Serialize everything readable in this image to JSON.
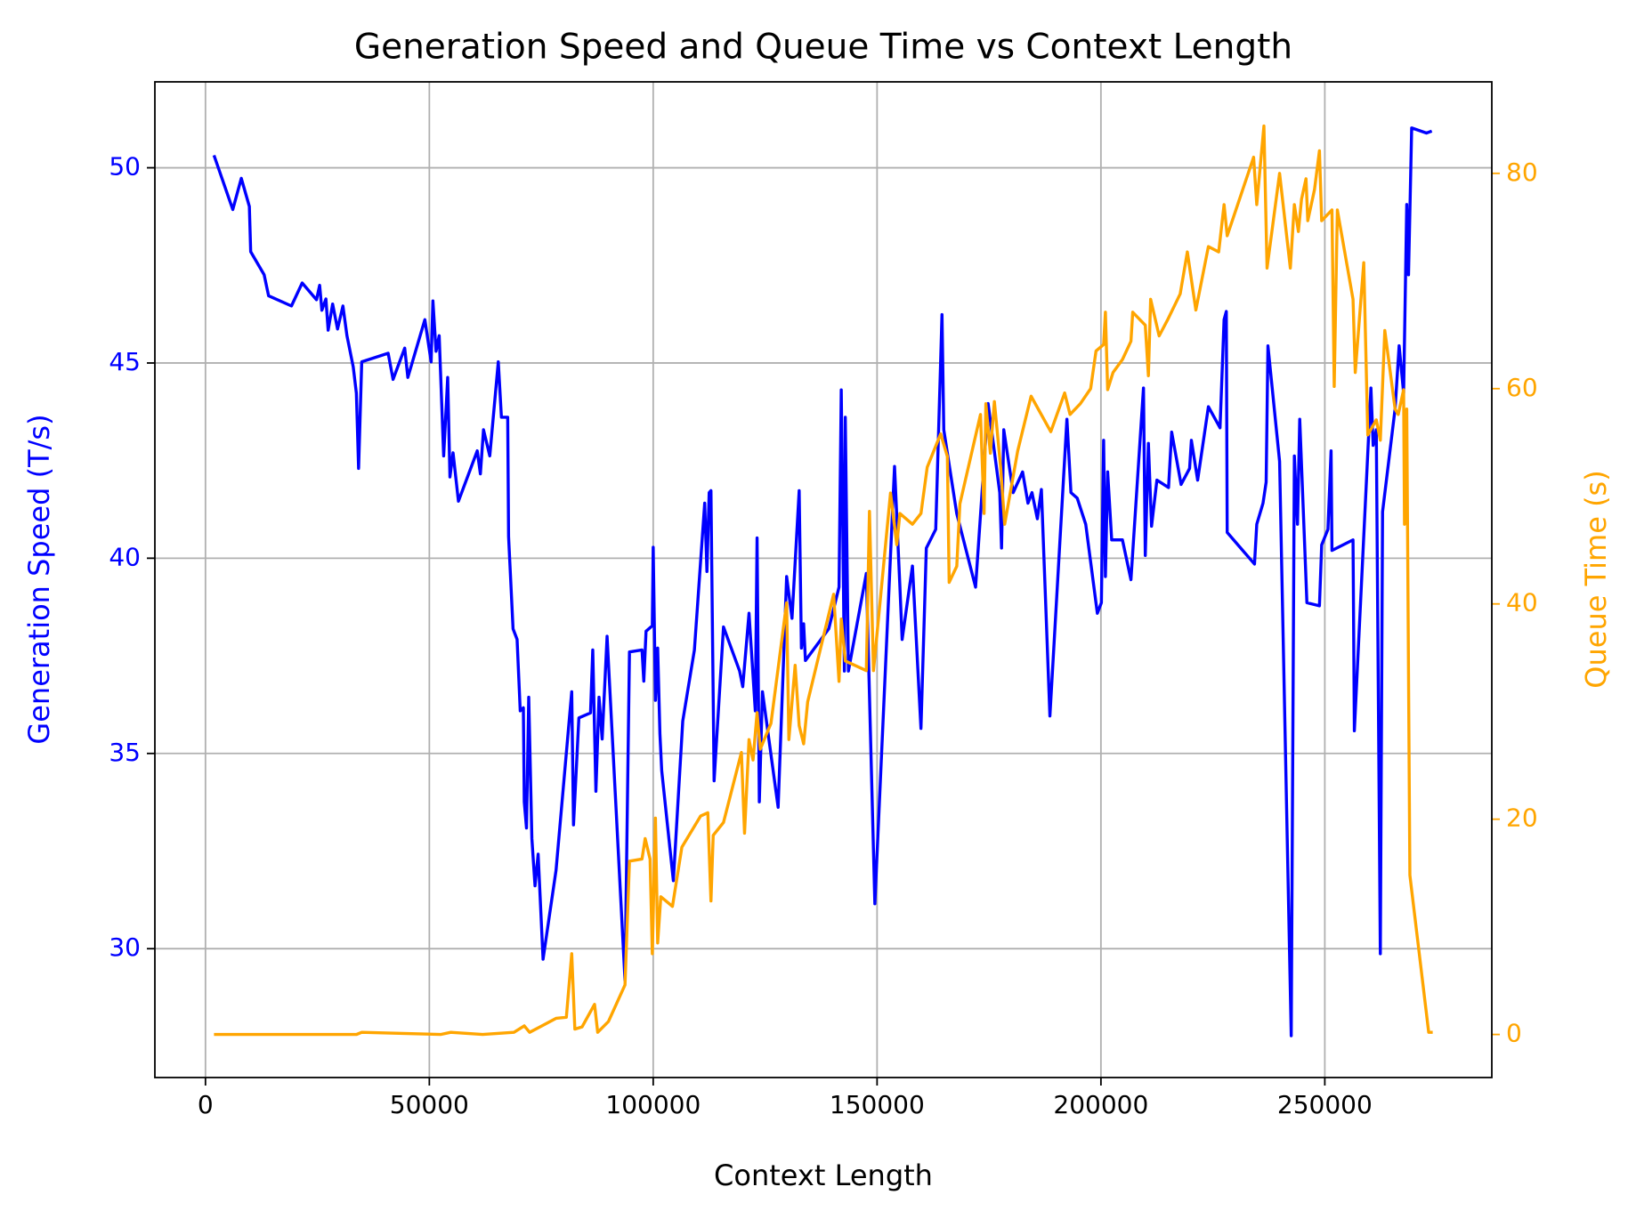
{
  "chart_data": {
    "type": "line",
    "title": "Generation Speed and Queue Time vs Context Length",
    "xlabel": "Context Length",
    "ylabel": "Generation Speed (T/s)",
    "y2label": "Queue Time (s)",
    "xlim": [
      -11300,
      287300
    ],
    "ylim": [
      26.7,
      52.2
    ],
    "y2lim": [
      -4,
      88.5
    ],
    "xticks": [
      0,
      50000,
      100000,
      150000,
      200000,
      250000
    ],
    "yticks": [
      30,
      35,
      40,
      45,
      50
    ],
    "y2ticks": [
      0,
      20,
      40,
      60,
      80
    ],
    "grid": true,
    "series": [
      {
        "color": "#0000ff",
        "axis": "y",
        "x": [
          1900,
          6100,
          8000,
          9800,
          10100,
          13100,
          14100,
          19200,
          21600,
          24800,
          25500,
          26000,
          26900,
          27400,
          28400,
          29500,
          30700,
          31600,
          33000,
          33700,
          34200,
          34900,
          40800,
          41900,
          44500,
          45200,
          49000,
          50400,
          50800,
          51500,
          52200,
          53200,
          54100,
          54600,
          55300,
          56500,
          60700,
          61400,
          62100,
          63500,
          65400,
          66100,
          67500,
          67700,
          68700,
          69600,
          70300,
          71000,
          71200,
          71700,
          72200,
          72900,
          73600,
          74300,
          75400,
          78300,
          81800,
          82200,
          83400,
          86000,
          86500,
          87200,
          87900,
          88600,
          89700,
          93700,
          94700,
          97500,
          97900,
          98400,
          99800,
          100000,
          100500,
          101000,
          101500,
          101900,
          104500,
          106600,
          109200,
          111500,
          112000,
          112500,
          112900,
          113600,
          115700,
          119300,
          120000,
          121400,
          122800,
          123200,
          123700,
          124400,
          127900,
          129800,
          131000,
          132600,
          133100,
          133600,
          134000,
          139200,
          141500,
          142000,
          142700,
          142900,
          143600,
          147600,
          149500,
          153000,
          153900,
          155100,
          155600,
          157900,
          159800,
          161000,
          163100,
          164500,
          164900,
          167800,
          172000,
          174800,
          177400,
          177800,
          178300,
          180400,
          182500,
          183700,
          184600,
          185800,
          186700,
          188600,
          192400,
          193300,
          194700,
          196600,
          199200,
          200100,
          200600,
          201000,
          201500,
          202400,
          204800,
          206700,
          209500,
          209900,
          210600,
          211300,
          212500,
          215100,
          215800,
          217900,
          219800,
          220200,
          221600,
          224000,
          226600,
          227500,
          228000,
          228200,
          234300,
          234800,
          236200,
          236900,
          237300,
          239900,
          242500,
          243200,
          243900,
          244400,
          246000,
          248800,
          249300,
          250700,
          251400,
          251600,
          256300,
          256600,
          260300,
          260800,
          261500,
          262400,
          262900,
          265700,
          266600,
          267600,
          268300,
          268700,
          269400,
          272700,
          273900
        ],
        "values": [
          50.32,
          48.93,
          49.73,
          49.01,
          47.85,
          47.26,
          46.72,
          46.46,
          47.05,
          46.62,
          46.99,
          46.35,
          46.64,
          45.84,
          46.51,
          45.87,
          46.46,
          45.7,
          44.9,
          44.23,
          42.3,
          45.03,
          45.25,
          44.58,
          45.38,
          44.63,
          46.11,
          45.03,
          46.59,
          45.3,
          45.7,
          42.62,
          44.63,
          42.08,
          42.7,
          41.46,
          42.75,
          42.16,
          43.29,
          42.62,
          45.03,
          43.61,
          43.61,
          40.55,
          38.19,
          37.92,
          36.09,
          36.17,
          33.76,
          33.09,
          36.44,
          32.82,
          31.61,
          32.42,
          29.73,
          32.01,
          36.58,
          33.17,
          35.91,
          36.04,
          37.65,
          34.03,
          36.44,
          35.37,
          38.0,
          29.19,
          37.6,
          37.65,
          36.85,
          38.13,
          38.27,
          40.28,
          36.36,
          37.7,
          35.5,
          34.56,
          31.74,
          35.83,
          37.65,
          41.41,
          39.66,
          41.68,
          41.73,
          34.3,
          38.24,
          37.11,
          36.71,
          38.59,
          36.09,
          40.52,
          33.76,
          36.58,
          33.62,
          39.53,
          38.46,
          41.73,
          37.7,
          38.32,
          37.38,
          38.19,
          39.26,
          44.31,
          37.11,
          43.61,
          37.11,
          39.61,
          31.15,
          40.07,
          42.35,
          39.26,
          37.92,
          39.8,
          35.64,
          40.26,
          40.74,
          46.24,
          43.29,
          41.14,
          39.26,
          43.96,
          41.68,
          40.26,
          43.29,
          41.68,
          42.21,
          41.41,
          41.68,
          41.01,
          41.76,
          35.96,
          43.56,
          41.68,
          41.54,
          40.87,
          38.59,
          38.86,
          43.02,
          39.53,
          42.21,
          40.47,
          40.47,
          39.45,
          44.36,
          40.07,
          42.94,
          40.82,
          42.0,
          41.81,
          43.23,
          41.89,
          42.3,
          43.02,
          42.0,
          43.88,
          43.34,
          46.11,
          46.32,
          40.66,
          39.85,
          40.87,
          41.41,
          41.95,
          45.44,
          42.48,
          27.77,
          42.62,
          40.87,
          43.56,
          38.86,
          38.78,
          40.34,
          40.74,
          42.75,
          40.2,
          40.47,
          35.58,
          44.36,
          42.89,
          43.29,
          29.87,
          41.19,
          43.83,
          45.44,
          44.23,
          49.06,
          47.26,
          51.02,
          50.89,
          50.94
        ]
      },
      {
        "color": "#ffa500",
        "axis": "y2",
        "x": [
          1900,
          33700,
          34900,
          52500,
          54800,
          61900,
          68900,
          71200,
          72400,
          74700,
          78300,
          80600,
          81800,
          82500,
          84100,
          86900,
          87600,
          90000,
          93700,
          94700,
          97500,
          98200,
          99300,
          99800,
          100500,
          101000,
          101700,
          104300,
          106400,
          110600,
          112200,
          112900,
          113400,
          115700,
          119700,
          120400,
          121400,
          122300,
          123200,
          123900,
          126300,
          129800,
          130300,
          131700,
          132600,
          133600,
          134500,
          140300,
          141500,
          142000,
          142900,
          147600,
          148300,
          149200,
          153000,
          154400,
          155100,
          157900,
          159800,
          161200,
          164200,
          165700,
          166100,
          167800,
          168500,
          173100,
          173900,
          174300,
          175300,
          176200,
          177600,
          178500,
          181400,
          184400,
          186000,
          188800,
          191900,
          193100,
          195400,
          197700,
          198900,
          200600,
          201000,
          201500,
          202700,
          204800,
          206700,
          207100,
          209900,
          210600,
          211100,
          213000,
          214900,
          217700,
          219300,
          221200,
          224000,
          226300,
          227500,
          228200,
          234100,
          234800,
          236400,
          237100,
          239900,
          242300,
          243200,
          244100,
          244800,
          245800,
          246200,
          247700,
          248800,
          249300,
          251600,
          252100,
          252800,
          256300,
          256800,
          258700,
          259600,
          261500,
          262400,
          263400,
          265700,
          266400,
          267600,
          267800,
          268300,
          269000,
          273200,
          274100
        ],
        "values": [
          0,
          0,
          0.2,
          0,
          0.2,
          0,
          0.2,
          0.8,
          0.2,
          0.7,
          1.5,
          1.6,
          7.5,
          0.5,
          0.7,
          2.8,
          0.2,
          1.2,
          4.6,
          16.1,
          16.3,
          18.2,
          16.3,
          7.5,
          20.1,
          8.5,
          12.8,
          11.9,
          17.4,
          20.3,
          20.6,
          12.4,
          18.5,
          19.7,
          26.2,
          18.7,
          27.4,
          25.5,
          29.9,
          26.5,
          28.9,
          40.1,
          27.4,
          34.3,
          28.7,
          27.0,
          30.9,
          40.9,
          32.8,
          38.6,
          34.7,
          33.8,
          48.6,
          33.8,
          50.3,
          45.5,
          48.4,
          47.4,
          48.4,
          52.7,
          55.8,
          53.7,
          42.0,
          43.5,
          49.3,
          57.6,
          48.4,
          58.6,
          54.0,
          58.8,
          52.7,
          47.4,
          54.2,
          59.3,
          58.1,
          56.0,
          59.6,
          57.6,
          58.6,
          60.0,
          63.5,
          64.1,
          67.1,
          59.9,
          61.5,
          62.7,
          64.4,
          67.1,
          65.9,
          61.2,
          68.3,
          64.9,
          66.4,
          68.8,
          72.7,
          67.3,
          73.2,
          72.7,
          77.1,
          74.2,
          81.5,
          77.1,
          84.4,
          71.2,
          80.0,
          71.2,
          77.1,
          74.6,
          77.6,
          79.5,
          75.6,
          78.5,
          82.1,
          75.6,
          76.6,
          60.2,
          76.6,
          68.3,
          61.5,
          71.7,
          55.7,
          57.1,
          55.2,
          65.4,
          58.1,
          57.6,
          59.9,
          47.4,
          58.1,
          14.8,
          0.2,
          0.2
        ]
      }
    ]
  }
}
